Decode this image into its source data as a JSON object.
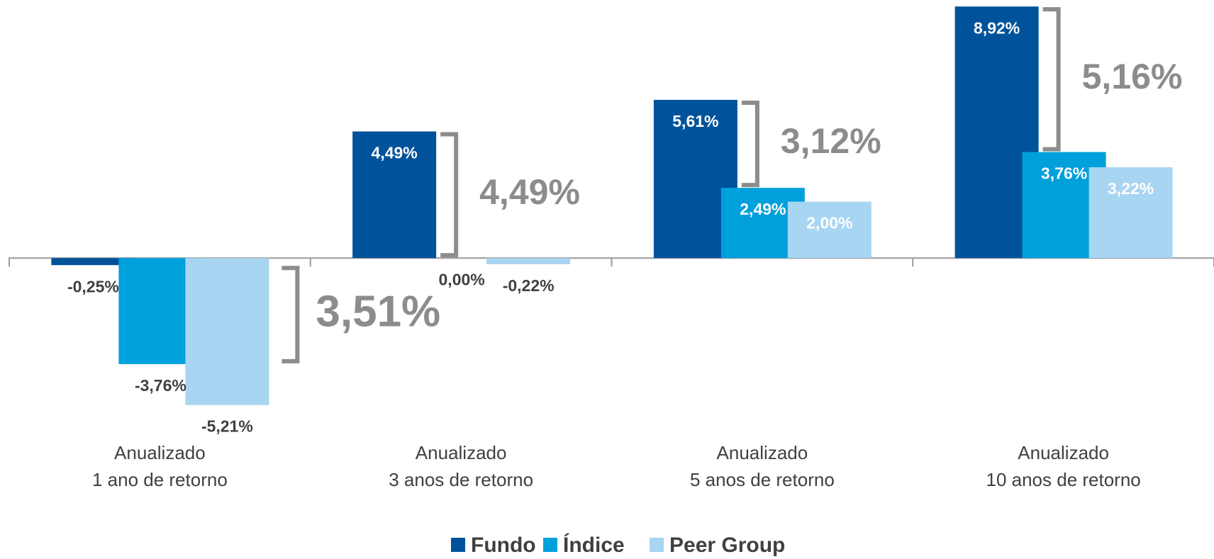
{
  "chart_data": {
    "type": "bar",
    "categories": [
      [
        "Anualizado",
        "1 ano de retorno"
      ],
      [
        "Anualizado",
        "3 anos de retorno"
      ],
      [
        "Anualizado",
        "5 anos de retorno"
      ],
      [
        "Anualizado",
        "10 anos de retorno"
      ]
    ],
    "series": [
      {
        "name": "Fundo",
        "color": "#00539b",
        "values": [
          -0.25,
          4.49,
          5.61,
          8.92
        ],
        "value_labels": [
          "-0,25%",
          "4,49%",
          "5,61%",
          "8,92%"
        ]
      },
      {
        "name": "Índice",
        "color": "#00a0dc",
        "values": [
          -3.76,
          0.0,
          2.49,
          3.76
        ],
        "value_labels": [
          "-3,76%",
          "0,00%",
          "2,49%",
          "3,76%"
        ]
      },
      {
        "name": "Peer Group",
        "color": "#a8d5f2",
        "values": [
          -5.21,
          -0.22,
          2.0,
          3.22
        ],
        "value_labels": [
          "-5,21%",
          "-0,22%",
          "2,00%",
          "3,22%"
        ]
      }
    ],
    "annotations": [
      "3,51%",
      "4,49%",
      "3,12%",
      "5,16%"
    ],
    "ylim": [
      -6.5,
      9.0
    ],
    "legend": "bottom"
  }
}
